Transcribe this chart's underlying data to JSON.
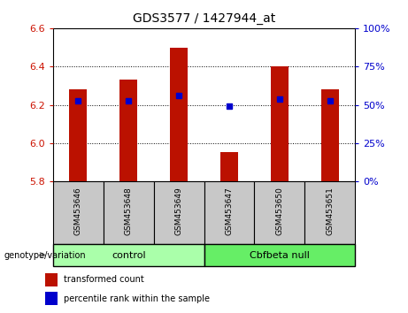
{
  "title": "GDS3577 / 1427944_at",
  "samples": [
    "GSM453646",
    "GSM453648",
    "GSM453649",
    "GSM453647",
    "GSM453650",
    "GSM453651"
  ],
  "transformed_counts": [
    6.28,
    6.33,
    6.5,
    5.955,
    6.4,
    6.28
  ],
  "percentile_ranks": [
    6.222,
    6.222,
    6.248,
    6.192,
    6.232,
    6.222
  ],
  "ylim_left": [
    5.8,
    6.6
  ],
  "yticks_left": [
    5.8,
    6.0,
    6.2,
    6.4,
    6.6
  ],
  "ylim_right": [
    0,
    100
  ],
  "yticks_right": [
    0,
    25,
    50,
    75,
    100
  ],
  "bar_color": "#bb1100",
  "dot_color": "#0000cc",
  "bar_width": 0.35,
  "baseline": 5.8,
  "sample_bg": "#c8c8c8",
  "control_color": "#aaffaa",
  "cbfbeta_color": "#66ee66",
  "tick_color_left": "#cc1100",
  "tick_color_right": "#0000cc",
  "legend_items": [
    "transformed count",
    "percentile rank within the sample"
  ],
  "xlabel_label": "genotype/variation"
}
